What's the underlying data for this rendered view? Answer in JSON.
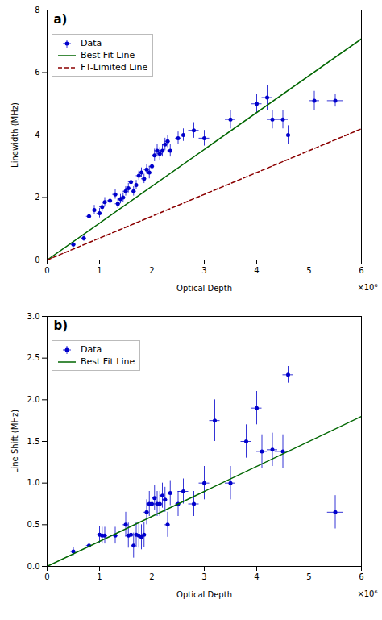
{
  "chart_data": [
    {
      "type": "scatter",
      "title": "a)",
      "xlabel": "Optical Depth",
      "ylabel": "Linewidth (MHz)",
      "xlim": [
        0,
        6
      ],
      "ylim": [
        0,
        8
      ],
      "xticks": [
        0,
        1,
        2,
        3,
        4,
        5,
        6
      ],
      "yticks": [
        0,
        2,
        4,
        6,
        8
      ],
      "grid": false,
      "legend": "upper left",
      "annotations": [
        "×10⁶"
      ],
      "series": [
        {
          "name": "Data",
          "type": "scatter",
          "marker": "point",
          "color": "#0000CC",
          "x": [
            0.5,
            0.7,
            0.8,
            0.9,
            1.0,
            1.05,
            1.1,
            1.2,
            1.3,
            1.35,
            1.4,
            1.45,
            1.5,
            1.55,
            1.6,
            1.65,
            1.7,
            1.75,
            1.8,
            1.85,
            1.9,
            1.95,
            2.0,
            2.05,
            2.1,
            2.15,
            2.2,
            2.25,
            2.3,
            2.35,
            2.5,
            2.6,
            2.8,
            3.0,
            3.5,
            4.0,
            4.2,
            4.3,
            4.5,
            4.6,
            5.1,
            5.5
          ],
          "values": [
            0.5,
            0.7,
            1.4,
            1.6,
            1.5,
            1.7,
            1.85,
            1.9,
            2.1,
            1.8,
            1.95,
            2.0,
            2.2,
            2.3,
            2.5,
            2.2,
            2.4,
            2.7,
            2.8,
            2.6,
            2.9,
            2.8,
            3.0,
            3.35,
            3.5,
            3.4,
            3.5,
            3.7,
            3.8,
            3.5,
            3.9,
            4.0,
            4.15,
            3.9,
            4.5,
            5.0,
            5.2,
            4.5,
            4.5,
            4.0,
            5.1,
            5.1
          ],
          "x_err": [
            0.05,
            0.05,
            0.05,
            0.05,
            0.05,
            0.05,
            0.05,
            0.05,
            0.05,
            0.05,
            0.05,
            0.05,
            0.05,
            0.05,
            0.05,
            0.05,
            0.05,
            0.05,
            0.05,
            0.05,
            0.05,
            0.05,
            0.05,
            0.05,
            0.05,
            0.05,
            0.05,
            0.05,
            0.05,
            0.05,
            0.05,
            0.05,
            0.1,
            0.1,
            0.1,
            0.1,
            0.1,
            0.1,
            0.1,
            0.1,
            0.1,
            0.15
          ],
          "y_err": [
            0.1,
            0.1,
            0.15,
            0.15,
            0.15,
            0.15,
            0.15,
            0.15,
            0.15,
            0.15,
            0.15,
            0.15,
            0.15,
            0.15,
            0.15,
            0.15,
            0.15,
            0.15,
            0.15,
            0.15,
            0.15,
            0.2,
            0.2,
            0.2,
            0.2,
            0.2,
            0.2,
            0.2,
            0.2,
            0.2,
            0.2,
            0.2,
            0.25,
            0.25,
            0.3,
            0.3,
            0.4,
            0.3,
            0.3,
            0.3,
            0.3,
            0.2
          ]
        },
        {
          "name": "Best Fit Line",
          "type": "line",
          "line_style": "solid",
          "color": "#006600",
          "x": [
            0,
            6
          ],
          "values": [
            0,
            7.08
          ]
        },
        {
          "name": "FT-Limited Line",
          "type": "line",
          "line_style": "dashed",
          "color": "#8B0000",
          "x": [
            0,
            6
          ],
          "values": [
            0,
            4.2
          ]
        }
      ]
    },
    {
      "type": "scatter",
      "title": "b)",
      "xlabel": "Optical Depth",
      "ylabel": "Line Shift (MHz)",
      "xlim": [
        0,
        6
      ],
      "ylim": [
        0,
        3
      ],
      "xticks": [
        0,
        1,
        2,
        3,
        4,
        5,
        6
      ],
      "yticks": [
        {
          "value": 0,
          "label": "0.0"
        },
        0.5,
        {
          "value": 1.0,
          "label": "1.0"
        },
        1.5,
        {
          "value": 2.0,
          "label": "2.0"
        },
        2.5,
        {
          "value": 3.0,
          "label": "3.0"
        }
      ],
      "grid": false,
      "legend": "upper left",
      "annotations": [
        "×10⁶"
      ],
      "series": [
        {
          "name": "Data",
          "type": "scatter",
          "marker": "point",
          "color": "#0000CC",
          "x": [
            0.5,
            0.8,
            1.0,
            1.05,
            1.1,
            1.3,
            1.5,
            1.55,
            1.6,
            1.65,
            1.7,
            1.75,
            1.8,
            1.85,
            1.9,
            1.95,
            2.0,
            2.05,
            2.1,
            2.15,
            2.2,
            2.25,
            2.3,
            2.35,
            2.5,
            2.6,
            2.8,
            3.0,
            3.2,
            3.5,
            3.8,
            4.0,
            4.1,
            4.3,
            4.5,
            4.6,
            5.5
          ],
          "values": [
            0.18,
            0.25,
            0.38,
            0.37,
            0.37,
            0.37,
            0.5,
            0.37,
            0.38,
            0.25,
            0.38,
            0.37,
            0.35,
            0.38,
            0.65,
            0.75,
            0.75,
            0.82,
            0.75,
            0.75,
            0.85,
            0.8,
            0.5,
            0.88,
            0.75,
            0.9,
            0.75,
            1.0,
            1.75,
            1.0,
            1.5,
            1.9,
            1.38,
            1.4,
            1.38,
            2.3,
            0.65
          ],
          "x_err": [
            0.05,
            0.05,
            0.05,
            0.05,
            0.05,
            0.05,
            0.05,
            0.05,
            0.05,
            0.05,
            0.05,
            0.05,
            0.05,
            0.05,
            0.05,
            0.05,
            0.05,
            0.05,
            0.05,
            0.05,
            0.05,
            0.05,
            0.05,
            0.05,
            0.05,
            0.1,
            0.1,
            0.1,
            0.1,
            0.1,
            0.1,
            0.1,
            0.1,
            0.1,
            0.15,
            0.1,
            0.15
          ],
          "y_err": [
            0.05,
            0.05,
            0.1,
            0.1,
            0.1,
            0.1,
            0.15,
            0.15,
            0.15,
            0.15,
            0.15,
            0.15,
            0.15,
            0.15,
            0.15,
            0.15,
            0.15,
            0.15,
            0.15,
            0.15,
            0.15,
            0.15,
            0.15,
            0.15,
            0.15,
            0.15,
            0.15,
            0.2,
            0.25,
            0.2,
            0.2,
            0.2,
            0.2,
            0.2,
            0.2,
            0.1,
            0.2
          ]
        },
        {
          "name": "Best Fit Line",
          "type": "line",
          "line_style": "solid",
          "color": "#006600",
          "x": [
            0,
            6
          ],
          "values": [
            0,
            1.8
          ]
        }
      ]
    }
  ]
}
